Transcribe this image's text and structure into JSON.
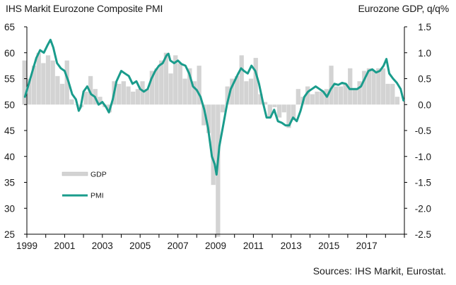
{
  "chart_data": {
    "type": "bar+line",
    "title_left": "IHS Markit Eurozone Composite PMI",
    "title_right": "Eurozone GDP, q/q%",
    "source": "Sources: IHS Markit, Eurostat.",
    "x_ticks": [
      "1999",
      "2001",
      "2003",
      "2005",
      "2007",
      "2009",
      "2011",
      "2013",
      "2015",
      "2017"
    ],
    "y_left": {
      "lim": [
        25,
        65
      ],
      "ticks": [
        25,
        30,
        35,
        40,
        45,
        50,
        55,
        60,
        65
      ]
    },
    "y_right": {
      "lim": [
        -2.5,
        1.5
      ],
      "ticks": [
        "1.5",
        "1.0",
        "0.5",
        "0.0",
        "-0.5",
        "-1.0",
        "-1.5",
        "-2.0",
        "-2.5"
      ]
    },
    "legend": [
      "GDP",
      "PMI"
    ],
    "colors": {
      "gdp": "#d3d3d3",
      "pmi": "#1a9c8c",
      "axis": "#000000"
    },
    "series": [
      {
        "name": "GDP",
        "axis": "right",
        "kind": "bar",
        "x": [
          1998.75,
          1999.0,
          1999.25,
          1999.5,
          1999.75,
          2000.0,
          2000.25,
          2000.5,
          2000.75,
          2001.0,
          2001.25,
          2001.5,
          2001.75,
          2002.0,
          2002.25,
          2002.5,
          2002.75,
          2003.0,
          2003.25,
          2003.5,
          2003.75,
          2004.0,
          2004.25,
          2004.5,
          2004.75,
          2005.0,
          2005.25,
          2005.5,
          2005.75,
          2006.0,
          2006.25,
          2006.5,
          2006.75,
          2007.0,
          2007.25,
          2007.5,
          2007.75,
          2008.0,
          2008.25,
          2008.5,
          2008.75,
          2009.0,
          2009.25,
          2009.5,
          2009.75,
          2010.0,
          2010.25,
          2010.5,
          2010.75,
          2011.0,
          2011.25,
          2011.5,
          2011.75,
          2012.0,
          2012.25,
          2012.5,
          2012.75,
          2013.0,
          2013.25,
          2013.5,
          2013.75,
          2014.0,
          2014.25,
          2014.5,
          2014.75,
          2015.0,
          2015.25,
          2015.5,
          2015.75,
          2016.0,
          2016.25,
          2016.5,
          2016.75,
          2017.0,
          2017.25,
          2017.5,
          2017.75,
          2018.0,
          2018.25,
          2018.5
        ],
        "values": [
          0.85,
          0.5,
          0.75,
          1.0,
          0.8,
          0.95,
          0.85,
          0.55,
          0.4,
          0.85,
          0.1,
          0.0,
          -0.05,
          0.25,
          0.55,
          0.3,
          0.15,
          -0.05,
          -0.15,
          0.45,
          0.4,
          0.45,
          0.35,
          0.25,
          0.3,
          0.45,
          0.3,
          0.65,
          0.7,
          0.85,
          1.0,
          0.6,
          0.95,
          0.8,
          0.5,
          0.7,
          0.45,
          0.75,
          -0.4,
          -0.55,
          -1.55,
          -2.6,
          -0.15,
          0.35,
          0.5,
          0.55,
          0.95,
          0.45,
          0.5,
          0.9,
          0.2,
          0.05,
          -0.25,
          -0.05,
          -0.25,
          -0.15,
          -0.45,
          -0.3,
          0.3,
          0.15,
          0.35,
          0.2,
          0.25,
          0.25,
          0.3,
          0.75,
          0.35,
          0.35,
          0.4,
          0.7,
          0.3,
          0.45,
          0.65,
          0.7,
          0.65,
          0.7,
          0.7,
          0.4,
          0.4,
          0.15
        ]
      },
      {
        "name": "PMI",
        "axis": "left",
        "kind": "line",
        "x": [
          1998.9,
          1999.1,
          1999.3,
          1999.5,
          1999.7,
          1999.9,
          2000.1,
          2000.25,
          2000.4,
          2000.5,
          2000.6,
          2000.8,
          2001.0,
          2001.2,
          2001.4,
          2001.6,
          2001.75,
          2001.85,
          2002.0,
          2002.2,
          2002.4,
          2002.6,
          2002.8,
          2003.0,
          2003.2,
          2003.35,
          2003.55,
          2003.75,
          2004.0,
          2004.2,
          2004.4,
          2004.6,
          2004.8,
          2005.0,
          2005.2,
          2005.4,
          2005.6,
          2005.8,
          2006.0,
          2006.2,
          2006.4,
          2006.5,
          2006.6,
          2006.8,
          2007.0,
          2007.2,
          2007.4,
          2007.6,
          2007.8,
          2008.0,
          2008.2,
          2008.4,
          2008.6,
          2008.8,
          2008.95,
          2009.05,
          2009.2,
          2009.4,
          2009.6,
          2009.8,
          2010.0,
          2010.2,
          2010.35,
          2010.5,
          2010.7,
          2010.9,
          2011.1,
          2011.3,
          2011.5,
          2011.7,
          2011.9,
          2012.1,
          2012.3,
          2012.5,
          2012.7,
          2012.9,
          2013.1,
          2013.3,
          2013.5,
          2013.7,
          2013.9,
          2014.1,
          2014.3,
          2014.5,
          2014.7,
          2014.9,
          2015.1,
          2015.3,
          2015.5,
          2015.7,
          2015.9,
          2016.1,
          2016.3,
          2016.5,
          2016.7,
          2016.9,
          2017.1,
          2017.3,
          2017.5,
          2017.7,
          2017.9,
          2018.05,
          2018.2,
          2018.4,
          2018.6,
          2018.8,
          2018.95
        ],
        "values": [
          51.5,
          54.0,
          56.5,
          59.0,
          60.5,
          60.0,
          61.5,
          62.5,
          61.0,
          59.5,
          58.0,
          57.0,
          56.5,
          54.5,
          52.0,
          51.0,
          48.8,
          49.5,
          52.5,
          53.5,
          52.0,
          51.5,
          50.0,
          50.5,
          49.5,
          48.5,
          51.0,
          54.5,
          56.5,
          56.0,
          55.5,
          54.0,
          54.5,
          53.0,
          52.5,
          53.0,
          55.0,
          56.5,
          57.5,
          58.0,
          59.5,
          59.8,
          58.5,
          58.0,
          58.5,
          57.8,
          57.5,
          56.0,
          53.5,
          52.8,
          51.5,
          49.0,
          45.5,
          40.0,
          38.5,
          36.5,
          42.0,
          46.0,
          50.0,
          53.0,
          54.5,
          56.0,
          57.0,
          56.5,
          56.0,
          57.5,
          56.5,
          54.0,
          50.5,
          47.5,
          47.5,
          49.0,
          46.8,
          46.5,
          46.0,
          46.0,
          47.5,
          46.8,
          48.8,
          51.5,
          52.5,
          53.0,
          53.5,
          53.0,
          52.5,
          51.5,
          53.0,
          54.0,
          53.8,
          54.2,
          54.0,
          53.0,
          53.0,
          53.0,
          53.5,
          55.0,
          56.5,
          56.8,
          56.2,
          56.5,
          57.5,
          58.8,
          56.0,
          55.0,
          54.2,
          53.0,
          50.8
        ]
      }
    ]
  }
}
